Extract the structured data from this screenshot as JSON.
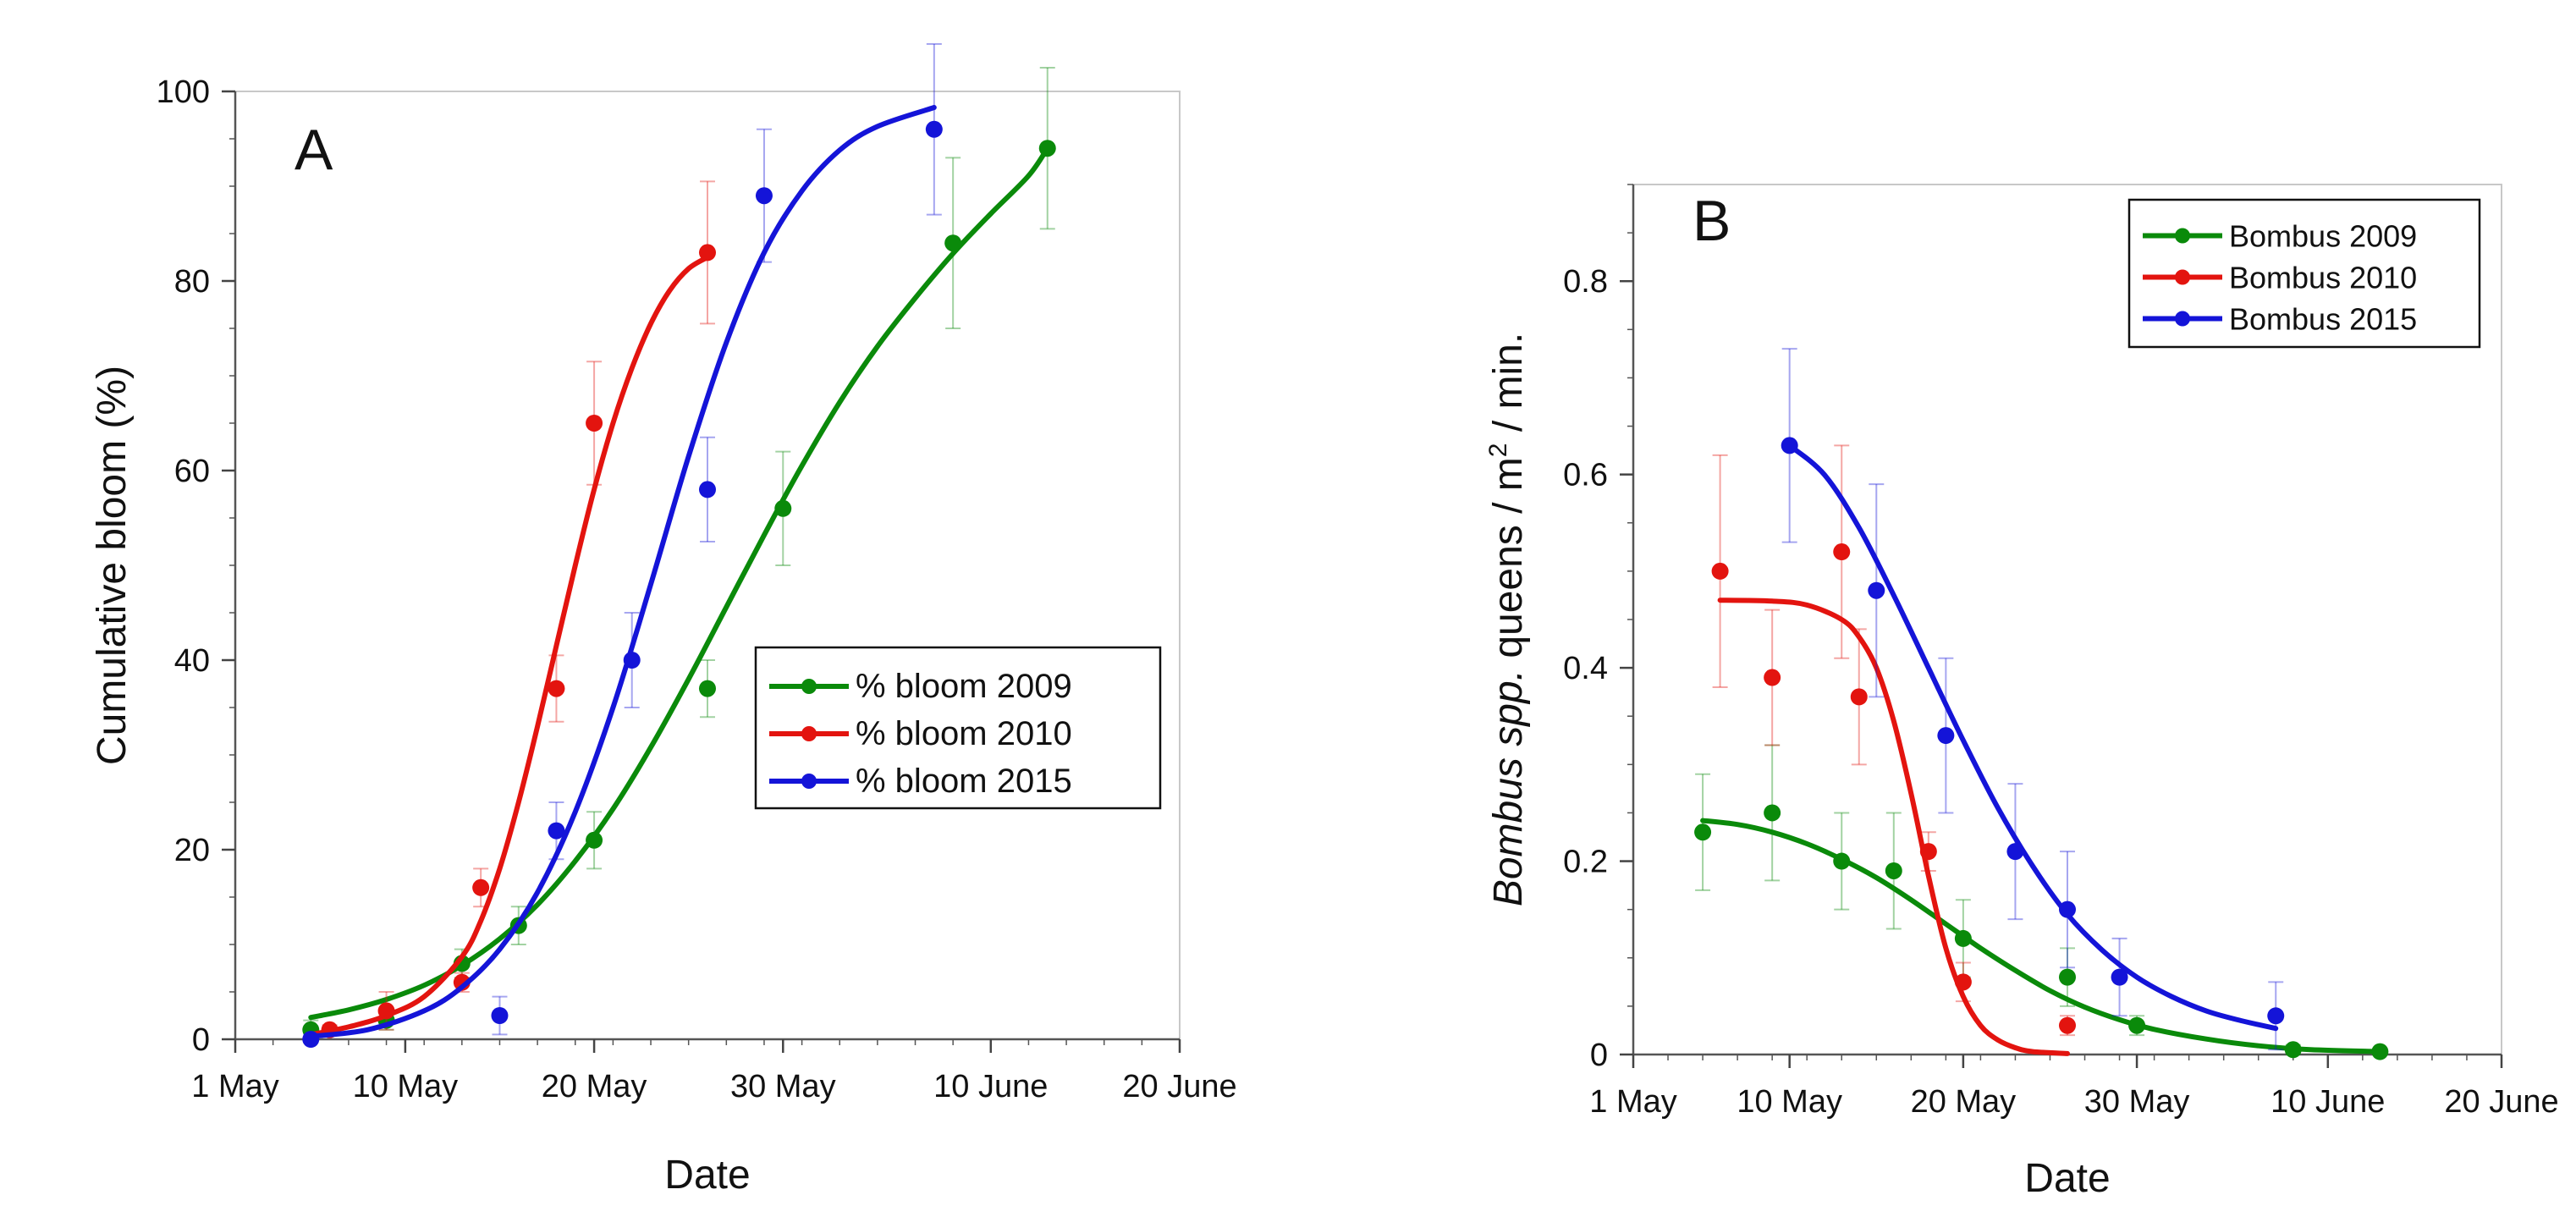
{
  "colors": {
    "green": "#0a8a0a",
    "red": "#e3140f",
    "blue": "#1414d8"
  },
  "chart_data": [
    {
      "type": "scatter",
      "panel_label": "A",
      "xlabel": "Date",
      "ylabel": "Cumulative bloom (%)",
      "xlim": [
        "2000-05-01",
        "2000-06-20"
      ],
      "ylim": [
        0,
        100
      ],
      "x_ticks": [
        {
          "date": "2000-05-01",
          "label": "1 May"
        },
        {
          "date": "2000-05-10",
          "label": "10 May"
        },
        {
          "date": "2000-05-20",
          "label": "20 May"
        },
        {
          "date": "2000-05-30",
          "label": "30 May"
        },
        {
          "date": "2000-06-10",
          "label": "10 June"
        },
        {
          "date": "2000-06-20",
          "label": "20 June"
        }
      ],
      "y_ticks": [
        0,
        20,
        40,
        60,
        80,
        100
      ],
      "legend_position": "bottom-right",
      "fit_curves": true,
      "series": [
        {
          "name": "% bloom 2009",
          "color": "green",
          "points": [
            {
              "x": "2000-05-05",
              "y": 1,
              "err": 1
            },
            {
              "x": "2000-05-09",
              "y": 2,
              "err": 1
            },
            {
              "x": "2000-05-13",
              "y": 8,
              "err": 1.5
            },
            {
              "x": "2000-05-16",
              "y": 12,
              "err": 2
            },
            {
              "x": "2000-05-20",
              "y": 21,
              "err": 3
            },
            {
              "x": "2000-05-26",
              "y": 37,
              "err": 3
            },
            {
              "x": "2000-05-30",
              "y": 56,
              "err": 6
            },
            {
              "x": "2000-06-08",
              "y": 84,
              "err": 9
            },
            {
              "x": "2000-06-13",
              "y": 94,
              "err": 8.5
            }
          ],
          "fit": [
            {
              "x": "2000-05-05",
              "y": 2.3
            },
            {
              "x": "2000-05-07",
              "y": 3.1
            },
            {
              "x": "2000-05-09",
              "y": 4.2
            },
            {
              "x": "2000-05-11",
              "y": 5.7
            },
            {
              "x": "2000-05-13",
              "y": 7.8
            },
            {
              "x": "2000-05-15",
              "y": 10.6
            },
            {
              "x": "2000-05-17",
              "y": 14.2
            },
            {
              "x": "2000-05-19",
              "y": 18.8
            },
            {
              "x": "2000-05-21",
              "y": 24.3
            },
            {
              "x": "2000-05-23",
              "y": 30.8
            },
            {
              "x": "2000-05-25",
              "y": 38.0
            },
            {
              "x": "2000-05-27",
              "y": 45.6
            },
            {
              "x": "2000-05-29",
              "y": 53.2
            },
            {
              "x": "2000-05-31",
              "y": 60.5
            },
            {
              "x": "2000-06-02",
              "y": 67.2
            },
            {
              "x": "2000-06-04",
              "y": 73.1
            },
            {
              "x": "2000-06-06",
              "y": 78.2
            },
            {
              "x": "2000-06-08",
              "y": 82.9
            },
            {
              "x": "2000-06-10",
              "y": 87.1
            },
            {
              "x": "2000-06-12",
              "y": 91.1
            },
            {
              "x": "2000-06-13",
              "y": 94.0
            }
          ]
        },
        {
          "name": "% bloom 2010",
          "color": "red",
          "points": [
            {
              "x": "2000-05-06",
              "y": 1,
              "err": 0.5
            },
            {
              "x": "2000-05-09",
              "y": 3,
              "err": 2
            },
            {
              "x": "2000-05-13",
              "y": 6,
              "err": 1
            },
            {
              "x": "2000-05-14",
              "y": 16,
              "err": 2
            },
            {
              "x": "2000-05-18",
              "y": 37,
              "err": 3.5
            },
            {
              "x": "2000-05-20",
              "y": 65,
              "err": 6.5
            },
            {
              "x": "2000-05-26",
              "y": 83,
              "err": 7.5
            }
          ],
          "fit": [
            {
              "x": "2000-05-05",
              "y": 0.5
            },
            {
              "x": "2000-05-07",
              "y": 1.3
            },
            {
              "x": "2000-05-09",
              "y": 2.5
            },
            {
              "x": "2000-05-11",
              "y": 4.5
            },
            {
              "x": "2000-05-13",
              "y": 8.7
            },
            {
              "x": "2000-05-14",
              "y": 12.5
            },
            {
              "x": "2000-05-15",
              "y": 18.0
            },
            {
              "x": "2000-05-16",
              "y": 25.0
            },
            {
              "x": "2000-05-17",
              "y": 33.0
            },
            {
              "x": "2000-05-18",
              "y": 41.5
            },
            {
              "x": "2000-05-19",
              "y": 50.0
            },
            {
              "x": "2000-05-20",
              "y": 58.0
            },
            {
              "x": "2000-05-21",
              "y": 65.0
            },
            {
              "x": "2000-05-22",
              "y": 70.8
            },
            {
              "x": "2000-05-23",
              "y": 75.5
            },
            {
              "x": "2000-05-24",
              "y": 79.0
            },
            {
              "x": "2000-05-25",
              "y": 81.3
            },
            {
              "x": "2000-05-26",
              "y": 82.5
            }
          ]
        },
        {
          "name": "% bloom 2015",
          "color": "blue",
          "points": [
            {
              "x": "2000-05-05",
              "y": 0,
              "err": 0.5
            },
            {
              "x": "2000-05-15",
              "y": 2.5,
              "err": 2
            },
            {
              "x": "2000-05-18",
              "y": 22,
              "err": 3
            },
            {
              "x": "2000-05-22",
              "y": 40,
              "err": 5
            },
            {
              "x": "2000-05-26",
              "y": 58,
              "err": 5.5
            },
            {
              "x": "2000-05-29",
              "y": 89,
              "err": 7
            },
            {
              "x": "2000-06-07",
              "y": 96,
              "err": 9
            }
          ],
          "fit": [
            {
              "x": "2000-05-05",
              "y": 0.3
            },
            {
              "x": "2000-05-08",
              "y": 1.0
            },
            {
              "x": "2000-05-11",
              "y": 3.0
            },
            {
              "x": "2000-05-13",
              "y": 5.5
            },
            {
              "x": "2000-05-15",
              "y": 9.5
            },
            {
              "x": "2000-05-17",
              "y": 15.5
            },
            {
              "x": "2000-05-19",
              "y": 24.0
            },
            {
              "x": "2000-05-21",
              "y": 35.0
            },
            {
              "x": "2000-05-23",
              "y": 48.0
            },
            {
              "x": "2000-05-25",
              "y": 61.5
            },
            {
              "x": "2000-05-27",
              "y": 73.5
            },
            {
              "x": "2000-05-29",
              "y": 83.0
            },
            {
              "x": "2000-05-31",
              "y": 89.5
            },
            {
              "x": "2000-06-02",
              "y": 93.8
            },
            {
              "x": "2000-06-04",
              "y": 96.3
            },
            {
              "x": "2000-06-07",
              "y": 98.3
            }
          ]
        }
      ]
    },
    {
      "type": "scatter",
      "panel_label": "B",
      "xlabel": "Date",
      "ylabel_parts": [
        "Bombus spp.",
        " queens / m",
        "2",
        " / min."
      ],
      "xlim": [
        "2000-05-01",
        "2000-06-20"
      ],
      "ylim": [
        0,
        0.9
      ],
      "x_ticks": [
        {
          "date": "2000-05-01",
          "label": "1 May"
        },
        {
          "date": "2000-05-10",
          "label": "10 May"
        },
        {
          "date": "2000-05-20",
          "label": "20 May"
        },
        {
          "date": "2000-05-30",
          "label": "30 May"
        },
        {
          "date": "2000-06-10",
          "label": "10 June"
        },
        {
          "date": "2000-06-20",
          "label": "20 June"
        }
      ],
      "y_ticks": [
        {
          "value": 0,
          "label": "0"
        },
        {
          "value": 0.2,
          "label": "0.2"
        },
        {
          "value": 0.4,
          "label": "0.4"
        },
        {
          "value": 0.6,
          "label": "0.6"
        },
        {
          "value": 0.8,
          "label": "0.8"
        }
      ],
      "legend_position": "top-right",
      "fit_curves": true,
      "series": [
        {
          "name": "Bombus 2009",
          "color": "green",
          "points": [
            {
              "x": "2000-05-05",
              "y": 0.23,
              "err": 0.06
            },
            {
              "x": "2000-05-09",
              "y": 0.25,
              "err": 0.07
            },
            {
              "x": "2000-05-13",
              "y": 0.2,
              "err": 0.05
            },
            {
              "x": "2000-05-16",
              "y": 0.19,
              "err": 0.06
            },
            {
              "x": "2000-05-20",
              "y": 0.12,
              "err": 0.04
            },
            {
              "x": "2000-05-26",
              "y": 0.08,
              "err": 0.03
            },
            {
              "x": "2000-05-30",
              "y": 0.03,
              "err": 0.01
            },
            {
              "x": "2000-06-08",
              "y": 0.005,
              "err": 0.005
            },
            {
              "x": "2000-06-13",
              "y": 0.003,
              "err": 0.003
            }
          ],
          "fit": [
            {
              "x": "2000-05-05",
              "y": 0.242
            },
            {
              "x": "2000-05-07",
              "y": 0.238
            },
            {
              "x": "2000-05-09",
              "y": 0.23
            },
            {
              "x": "2000-05-11",
              "y": 0.218
            },
            {
              "x": "2000-05-13",
              "y": 0.202
            },
            {
              "x": "2000-05-15",
              "y": 0.183
            },
            {
              "x": "2000-05-17",
              "y": 0.16
            },
            {
              "x": "2000-05-19",
              "y": 0.135
            },
            {
              "x": "2000-05-21",
              "y": 0.11
            },
            {
              "x": "2000-05-23",
              "y": 0.087
            },
            {
              "x": "2000-05-25",
              "y": 0.066
            },
            {
              "x": "2000-05-27",
              "y": 0.049
            },
            {
              "x": "2000-05-29",
              "y": 0.036
            },
            {
              "x": "2000-05-31",
              "y": 0.026
            },
            {
              "x": "2000-06-03",
              "y": 0.016
            },
            {
              "x": "2000-06-06",
              "y": 0.009
            },
            {
              "x": "2000-06-09",
              "y": 0.005
            },
            {
              "x": "2000-06-13",
              "y": 0.003
            }
          ]
        },
        {
          "name": "Bombus 2010",
          "color": "red",
          "points": [
            {
              "x": "2000-05-06",
              "y": 0.5,
              "err": 0.12
            },
            {
              "x": "2000-05-09",
              "y": 0.39,
              "err": 0.07
            },
            {
              "x": "2000-05-13",
              "y": 0.52,
              "err": 0.11
            },
            {
              "x": "2000-05-14",
              "y": 0.37,
              "err": 0.07
            },
            {
              "x": "2000-05-18",
              "y": 0.21,
              "err": 0.02
            },
            {
              "x": "2000-05-20",
              "y": 0.075,
              "err": 0.02
            },
            {
              "x": "2000-05-26",
              "y": 0.03,
              "err": 0.01
            }
          ],
          "fit": [
            {
              "x": "2000-05-06",
              "y": 0.47
            },
            {
              "x": "2000-05-09",
              "y": 0.469
            },
            {
              "x": "2000-05-11",
              "y": 0.465
            },
            {
              "x": "2000-05-13",
              "y": 0.45
            },
            {
              "x": "2000-05-14",
              "y": 0.432
            },
            {
              "x": "2000-05-15",
              "y": 0.4
            },
            {
              "x": "2000-05-16",
              "y": 0.345
            },
            {
              "x": "2000-05-17",
              "y": 0.27
            },
            {
              "x": "2000-05-18",
              "y": 0.185
            },
            {
              "x": "2000-05-19",
              "y": 0.11
            },
            {
              "x": "2000-05-20",
              "y": 0.06
            },
            {
              "x": "2000-05-21",
              "y": 0.03
            },
            {
              "x": "2000-05-22",
              "y": 0.015
            },
            {
              "x": "2000-05-23",
              "y": 0.007
            },
            {
              "x": "2000-05-24",
              "y": 0.003
            },
            {
              "x": "2000-05-26",
              "y": 0.001
            }
          ]
        },
        {
          "name": "Bombus 2015",
          "color": "blue",
          "points": [
            {
              "x": "2000-05-10",
              "y": 0.63,
              "err": 0.1
            },
            {
              "x": "2000-05-15",
              "y": 0.48,
              "err": 0.11
            },
            {
              "x": "2000-05-19",
              "y": 0.33,
              "err": 0.08
            },
            {
              "x": "2000-05-23",
              "y": 0.21,
              "err": 0.07
            },
            {
              "x": "2000-05-26",
              "y": 0.15,
              "err": 0.06
            },
            {
              "x": "2000-05-29",
              "y": 0.08,
              "err": 0.04
            },
            {
              "x": "2000-06-07",
              "y": 0.04,
              "err": 0.035
            }
          ],
          "fit": [
            {
              "x": "2000-05-10",
              "y": 0.63
            },
            {
              "x": "2000-05-12",
              "y": 0.6
            },
            {
              "x": "2000-05-14",
              "y": 0.545
            },
            {
              "x": "2000-05-16",
              "y": 0.475
            },
            {
              "x": "2000-05-18",
              "y": 0.4
            },
            {
              "x": "2000-05-20",
              "y": 0.325
            },
            {
              "x": "2000-05-22",
              "y": 0.255
            },
            {
              "x": "2000-05-24",
              "y": 0.195
            },
            {
              "x": "2000-05-26",
              "y": 0.145
            },
            {
              "x": "2000-05-28",
              "y": 0.108
            },
            {
              "x": "2000-05-30",
              "y": 0.08
            },
            {
              "x": "2000-06-01",
              "y": 0.06
            },
            {
              "x": "2000-06-03",
              "y": 0.045
            },
            {
              "x": "2000-06-05",
              "y": 0.035
            },
            {
              "x": "2000-06-07",
              "y": 0.027
            }
          ]
        }
      ]
    }
  ]
}
